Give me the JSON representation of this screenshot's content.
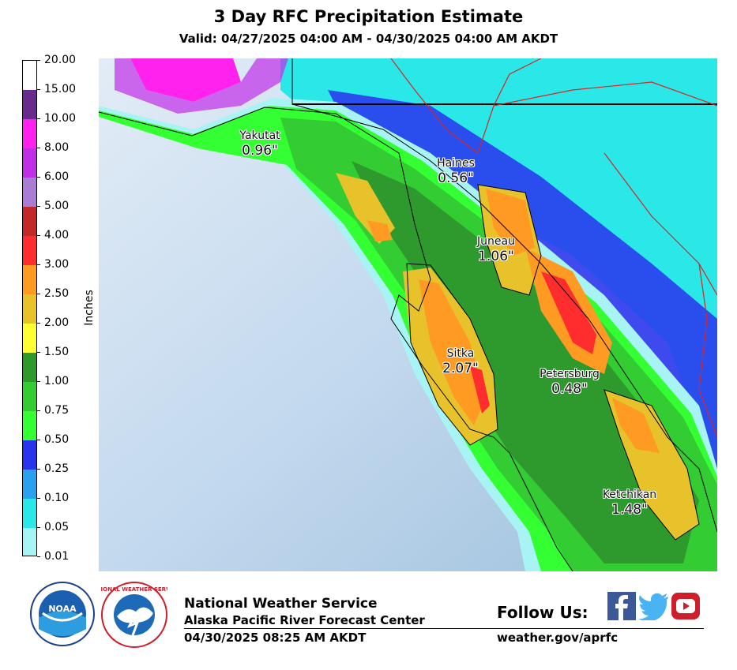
{
  "header": {
    "title": "3 Day RFC Precipitation Estimate",
    "valid": "Valid: 04/27/2025 04:00 AM - 04/30/2025 04:00 AM AKDT"
  },
  "colorbar": {
    "label": "Inches",
    "ticks": [
      "20.00",
      "15.00",
      "10.00",
      "8.00",
      "6.00",
      "5.00",
      "4.00",
      "3.00",
      "2.50",
      "2.00",
      "1.50",
      "1.00",
      "0.75",
      "0.50",
      "0.25",
      "0.10",
      "0.05",
      "0.01"
    ],
    "colors": [
      "#ffffff",
      "#6a2a8c",
      "#ff22ee",
      "#c02ee8",
      "#a97dd4",
      "#c22a2a",
      "#ff2d2d",
      "#ff9a22",
      "#e8c22a",
      "#ffff33",
      "#2e9a2e",
      "#33cc33",
      "#33ff33",
      "#2a33ee",
      "#2aa0ee",
      "#2ae8e8",
      "#a8f4f4"
    ]
  },
  "map": {
    "colors": {
      "ocean": "#c3d9ee",
      "trace": "#a8f4f4",
      "light": "#33ff33",
      "moderate": "#33cc33",
      "heavy": "#2e9a2e",
      "yellow": "#ffff33",
      "gold": "#e8c22a",
      "orange": "#ff9a22",
      "red": "#ff2d2d",
      "blue": "#2a33ee",
      "cyan": "#2ae8e8",
      "magenta": "#ff22ee",
      "purple": "#c02ee8",
      "highway": "#dd2222"
    },
    "cities": [
      {
        "name": "Yakutat",
        "value": "0.96\""
      },
      {
        "name": "Haines",
        "value": "0.56\""
      },
      {
        "name": "Juneau",
        "value": "1.06\""
      },
      {
        "name": "Sitka",
        "value": "2.07\""
      },
      {
        "name": "Petersburg",
        "value": "0.48\""
      },
      {
        "name": "Ketchikan",
        "value": "1.48\""
      }
    ]
  },
  "footer": {
    "org_line1": "National Weather Service",
    "org_line2": "Alaska Pacific River Forecast Center",
    "issued": "04/30/2025 08:25 AM AKDT",
    "follow_label": "Follow Us:",
    "website": "weather.gov/aprfc",
    "noaa_logo_text": "NOAA",
    "nws_logo_text": "NATIONAL WEATHER SERVICE"
  }
}
